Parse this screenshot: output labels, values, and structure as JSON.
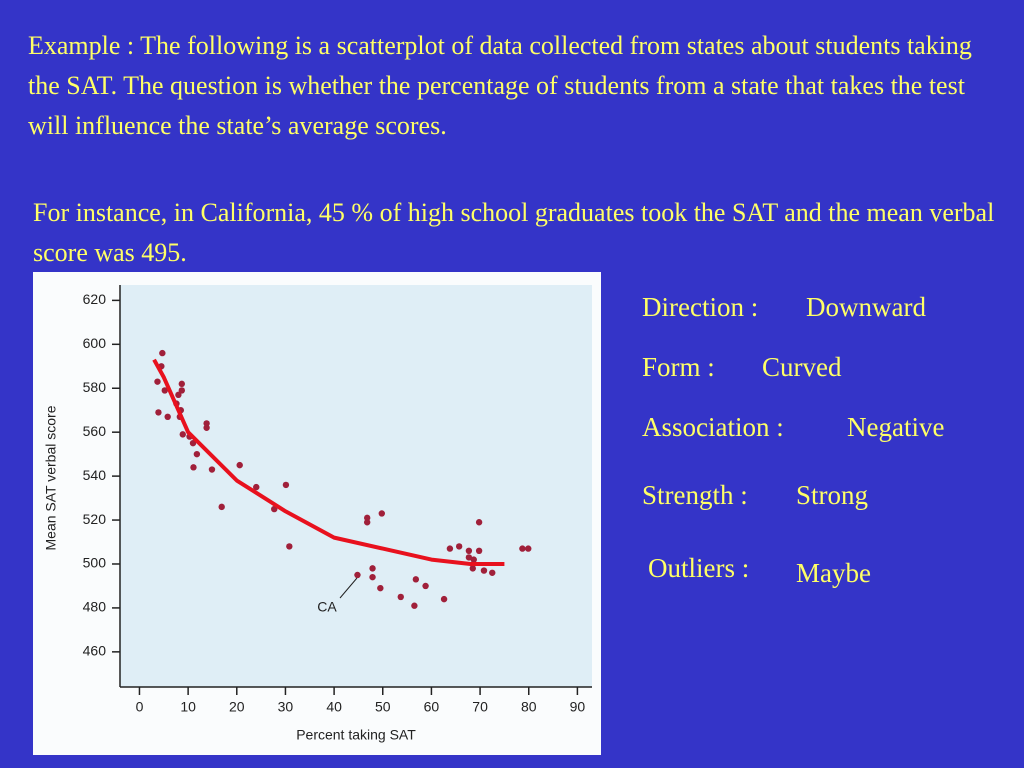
{
  "paragraphs": [
    "Example : The following is a scatterplot of data collected from states about students taking the SAT. The question is whether the percentage of students from a state that takes the test will influence the state’s average scores.",
    "For instance, in California, 45 % of high school graduates took the SAT and the mean verbal score was 495."
  ],
  "properties": [
    {
      "label": "Direction :",
      "value": "Downward"
    },
    {
      "label": "Form :",
      "value": "Curved"
    },
    {
      "label": "Association :",
      "value": "Negative"
    },
    {
      "label": "Strength :",
      "value": "Strong"
    },
    {
      "label": "Outliers :",
      "value": "Maybe"
    }
  ],
  "chart_data": {
    "type": "scatter",
    "x_label": "Percent taking SAT",
    "y_label": "Mean SAT verbal score",
    "xlim": [
      -4,
      93
    ],
    "ylim": [
      444,
      627
    ],
    "xticks": [
      0,
      10,
      20,
      30,
      40,
      50,
      60,
      70,
      80,
      90
    ],
    "yticks": [
      460,
      480,
      500,
      520,
      540,
      560,
      580,
      600,
      620
    ],
    "color": "#a0203a",
    "x": [
      4.7,
      4.5,
      3.7,
      5.2,
      8.7,
      8.7,
      8,
      7.6,
      8.5,
      8.3,
      3.9,
      5.8,
      8.9,
      10.3,
      11,
      11.8,
      11.1,
      13.8,
      13.8,
      14.9,
      16.9,
      20.6,
      24,
      27.7,
      30.1,
      30.8,
      44.8,
      46.8,
      46.8,
      47.9,
      47.9,
      49.8,
      49.5,
      53.7,
      56.8,
      56.5,
      58.8,
      62.6,
      63.8,
      65.7,
      67.7,
      67.7,
      68.5,
      69.8,
      69.8,
      70.8,
      72.5,
      68.7,
      78.7,
      79.9
    ],
    "y": [
      596,
      590,
      583,
      579,
      582,
      579,
      577,
      573,
      570,
      567,
      569,
      567,
      559,
      558,
      555,
      550,
      544,
      564,
      562,
      543,
      526,
      545,
      535,
      525,
      536,
      508,
      495,
      521,
      519,
      498,
      494,
      523,
      489,
      485,
      493,
      481,
      490,
      484,
      507,
      508,
      506,
      503,
      498,
      519,
      506,
      497,
      496,
      502,
      507,
      507
    ],
    "fit_curve": {
      "color": "#e8111e",
      "x": [
        3,
        5,
        10,
        20,
        30,
        40,
        50,
        60,
        68,
        75
      ],
      "y": [
        593,
        585,
        560,
        538,
        524,
        512,
        507,
        502,
        500,
        500
      ]
    },
    "annotation": "CA"
  }
}
